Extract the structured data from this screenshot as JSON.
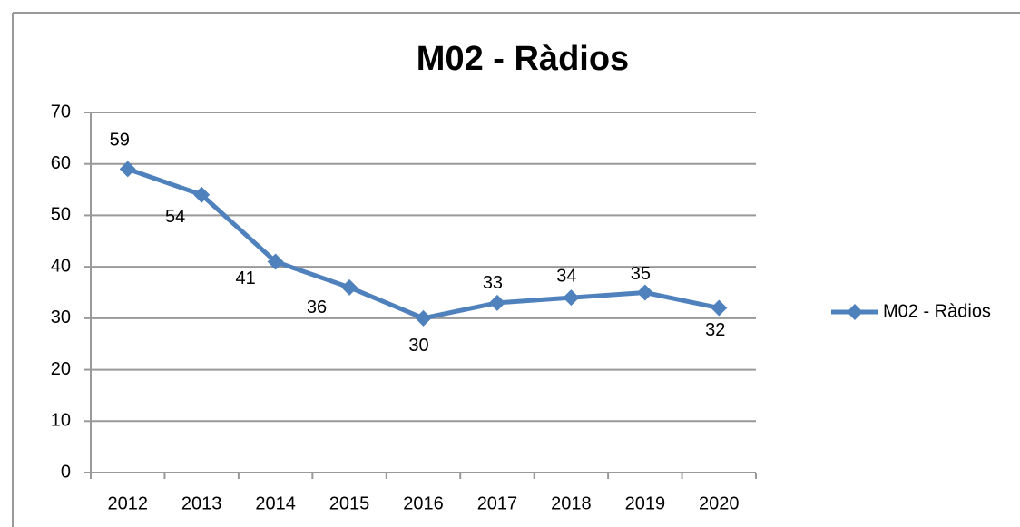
{
  "chart_data": {
    "type": "line",
    "title": "M02 - Ràdios",
    "categories": [
      "2012",
      "2013",
      "2014",
      "2015",
      "2016",
      "2017",
      "2018",
      "2019",
      "2020"
    ],
    "series": [
      {
        "name": "M02 - Ràdios",
        "color": "#4f81bd",
        "values": [
          59,
          54,
          41,
          36,
          30,
          33,
          34,
          35,
          32
        ]
      }
    ],
    "ylim": [
      0,
      70
    ],
    "yticks": [
      0,
      10,
      20,
      30,
      40,
      50,
      60,
      70
    ],
    "grid": true,
    "legend": "right"
  }
}
